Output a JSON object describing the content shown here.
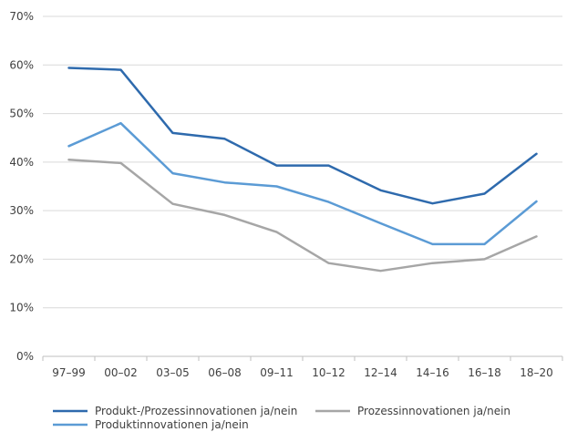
{
  "chart_data": {
    "type": "line",
    "title": "",
    "xlabel": "",
    "ylabel": "",
    "categories": [
      "97–99",
      "00–02",
      "03–05",
      "06–08",
      "09–11",
      "10–12",
      "12–14",
      "14–16",
      "16–18",
      "18–20"
    ],
    "y_tick_labels": [
      "0%",
      "10%",
      "20%",
      "30%",
      "40%",
      "50%",
      "60%",
      "70%"
    ],
    "ylim": [
      0,
      70
    ],
    "grid": true,
    "legend_position": "bottom",
    "series": [
      {
        "name": "Produkt-/Prozessinnovationen ja/nein",
        "color": "#2e6aad",
        "values": [
          59.4,
          59.0,
          46.0,
          44.8,
          39.3,
          39.3,
          34.2,
          31.5,
          33.5,
          41.7
        ]
      },
      {
        "name": "Produktinnovationen ja/nein",
        "color": "#5b9bd5",
        "values": [
          43.3,
          48.0,
          37.7,
          35.8,
          35.0,
          31.8,
          27.4,
          23.1,
          23.1,
          31.9
        ]
      },
      {
        "name": "Prozessinnovationen ja/nein",
        "color": "#a6a6a6",
        "values": [
          40.5,
          39.8,
          31.4,
          29.1,
          25.6,
          19.2,
          17.6,
          19.2,
          20.0,
          24.7
        ]
      }
    ]
  }
}
